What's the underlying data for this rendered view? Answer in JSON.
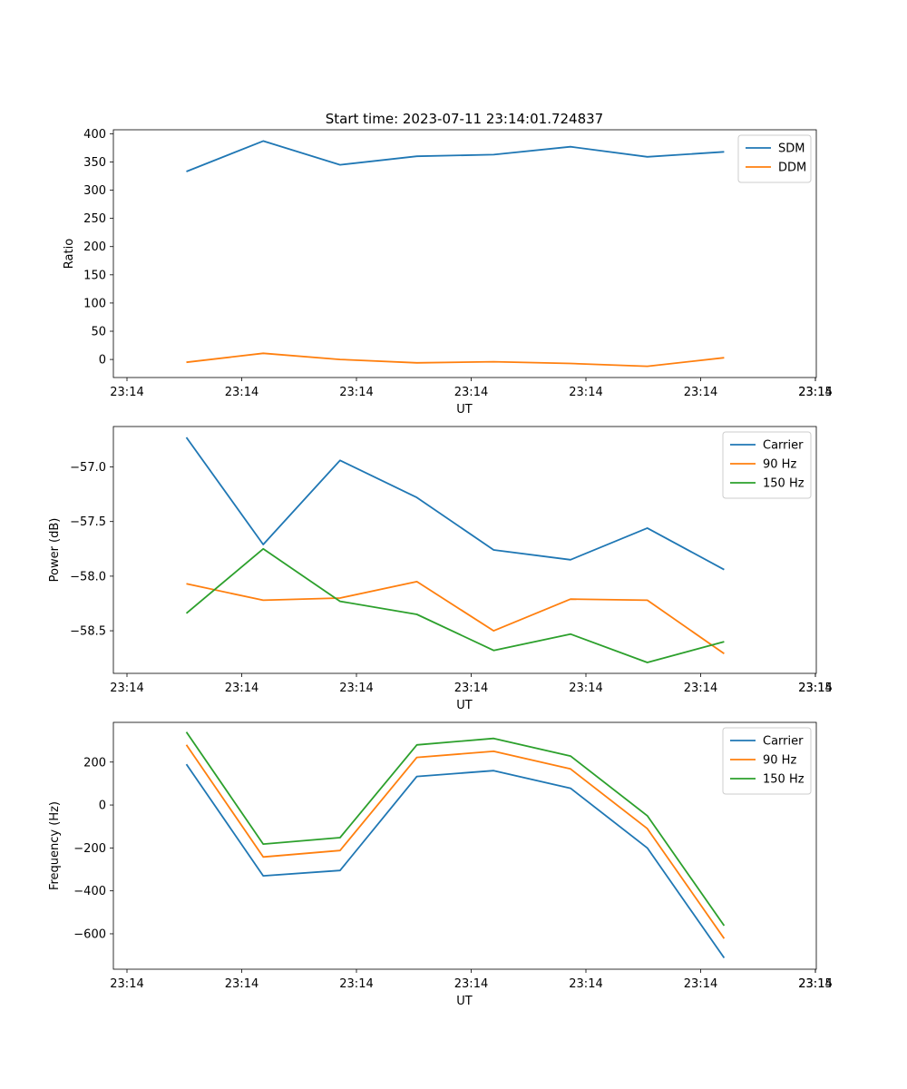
{
  "figure": {
    "title": "Start time: 2023-07-11 23:14:01.724837"
  },
  "chart_data": [
    {
      "type": "line",
      "xlabel": "UT",
      "ylabel": "Ratio",
      "x_tick_labels": [
        "23:14",
        "23:14",
        "23:14",
        "23:14",
        "23:14",
        "23:14",
        "23:14"
      ],
      "x_last_tick_label": "23:15",
      "x": [
        1,
        2,
        3,
        4,
        5,
        6,
        7,
        8
      ],
      "xlim": [
        0.05,
        9.2
      ],
      "ylim": [
        -32,
        407
      ],
      "yticks": [
        0,
        50,
        100,
        150,
        200,
        250,
        300,
        350,
        400
      ],
      "legend_position": "top-right",
      "series": [
        {
          "name": "SDM",
          "color": "#1f77b4",
          "values": [
            333,
            387,
            345,
            360,
            363,
            377,
            359,
            368
          ]
        },
        {
          "name": "DDM",
          "color": "#ff7f0e",
          "values": [
            -5,
            11,
            0,
            -6,
            -4,
            -7,
            -12,
            3
          ]
        }
      ]
    },
    {
      "type": "line",
      "xlabel": "UT",
      "ylabel": "Power (dB)",
      "x_tick_labels": [
        "23:14",
        "23:14",
        "23:14",
        "23:14",
        "23:14",
        "23:14",
        "23:14"
      ],
      "x_last_tick_label": "23:15",
      "x": [
        1,
        2,
        3,
        4,
        5,
        6,
        7,
        8
      ],
      "xlim": [
        0.05,
        9.2
      ],
      "ylim": [
        -58.89,
        -56.63
      ],
      "yticks": [
        -58.5,
        -58.0,
        -57.5,
        -57.0
      ],
      "ytick_labels": [
        "−58.5",
        "−58.0",
        "−57.5",
        "−57.0"
      ],
      "legend_position": "top-right",
      "series": [
        {
          "name": "Carrier",
          "color": "#1f77b4",
          "values": [
            -56.73,
            -57.71,
            -56.94,
            -57.28,
            -57.76,
            -57.85,
            -57.56,
            -57.94
          ]
        },
        {
          "name": "90 Hz",
          "color": "#ff7f0e",
          "values": [
            -58.07,
            -58.22,
            -58.2,
            -58.05,
            -58.5,
            -58.21,
            -58.22,
            -58.71
          ]
        },
        {
          "name": "150 Hz",
          "color": "#2ca02c",
          "values": [
            -58.34,
            -57.75,
            -58.23,
            -58.35,
            -58.68,
            -58.53,
            -58.79,
            -58.6
          ]
        }
      ]
    },
    {
      "type": "line",
      "xlabel": "UT",
      "ylabel": "Frequency (Hz)",
      "x_tick_labels": [
        "23:14",
        "23:14",
        "23:14",
        "23:14",
        "23:14",
        "23:14",
        "23:14"
      ],
      "x_last_tick_label": "23:15",
      "x": [
        1,
        2,
        3,
        4,
        5,
        6,
        7,
        8
      ],
      "xlim": [
        0.05,
        9.2
      ],
      "ylim": [
        -765,
        385
      ],
      "yticks": [
        -600,
        -400,
        -200,
        0,
        200
      ],
      "ytick_labels": [
        "−600",
        "−400",
        "−200",
        "0",
        "200"
      ],
      "legend_position": "top-right",
      "series": [
        {
          "name": "Carrier",
          "color": "#1f77b4",
          "values": [
            190,
            -330,
            -305,
            133,
            160,
            78,
            -200,
            -712
          ]
        },
        {
          "name": "90 Hz",
          "color": "#ff7f0e",
          "values": [
            280,
            -242,
            -212,
            222,
            250,
            168,
            -110,
            -622
          ]
        },
        {
          "name": "150 Hz",
          "color": "#2ca02c",
          "values": [
            340,
            -182,
            -152,
            280,
            310,
            228,
            -50,
            -562
          ]
        }
      ]
    }
  ]
}
